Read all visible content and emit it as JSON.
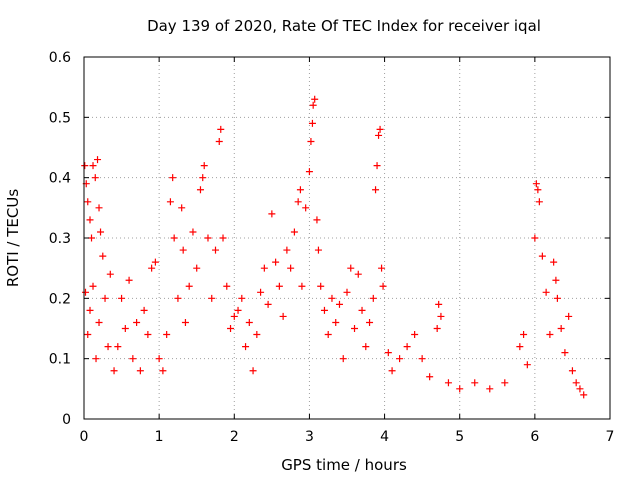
{
  "chart_data": {
    "type": "scatter",
    "title": "Day 139 of 2020, Rate Of TEC Index for receiver iqal",
    "xlabel": "GPS time / hours",
    "ylabel": "ROTI / TECUs",
    "xlim": [
      0,
      7
    ],
    "ylim": [
      0,
      0.6
    ],
    "xticks": [
      "0",
      "1",
      "2",
      "3",
      "4",
      "5",
      "6",
      "7"
    ],
    "yticks": [
      "0",
      "0.1",
      "0.2",
      "0.3",
      "0.4",
      "0.5",
      "0.6"
    ],
    "grid": true,
    "marker": "+",
    "color": "#ff0000",
    "series": [
      {
        "points": [
          [
            0.01,
            0.42
          ],
          [
            0.03,
            0.39
          ],
          [
            0.05,
            0.36
          ],
          [
            0.08,
            0.33
          ],
          [
            0.1,
            0.3
          ],
          [
            0.12,
            0.42
          ],
          [
            0.15,
            0.4
          ],
          [
            0.18,
            0.43
          ],
          [
            0.2,
            0.35
          ],
          [
            0.22,
            0.31
          ],
          [
            0.02,
            0.21
          ],
          [
            0.05,
            0.14
          ],
          [
            0.08,
            0.18
          ],
          [
            0.12,
            0.22
          ],
          [
            0.16,
            0.1
          ],
          [
            0.2,
            0.16
          ],
          [
            0.25,
            0.27
          ],
          [
            0.28,
            0.2
          ],
          [
            0.32,
            0.12
          ],
          [
            0.35,
            0.24
          ],
          [
            0.4,
            0.08
          ],
          [
            0.45,
            0.12
          ],
          [
            0.5,
            0.2
          ],
          [
            0.55,
            0.15
          ],
          [
            0.6,
            0.23
          ],
          [
            0.65,
            0.1
          ],
          [
            0.7,
            0.16
          ],
          [
            0.75,
            0.08
          ],
          [
            0.8,
            0.18
          ],
          [
            0.85,
            0.14
          ],
          [
            0.9,
            0.25
          ],
          [
            0.95,
            0.26
          ],
          [
            1.0,
            0.1
          ],
          [
            1.05,
            0.08
          ],
          [
            1.1,
            0.14
          ],
          [
            1.15,
            0.36
          ],
          [
            1.18,
            0.4
          ],
          [
            1.2,
            0.3
          ],
          [
            1.25,
            0.2
          ],
          [
            1.3,
            0.35
          ],
          [
            1.32,
            0.28
          ],
          [
            1.35,
            0.16
          ],
          [
            1.4,
            0.22
          ],
          [
            1.45,
            0.31
          ],
          [
            1.5,
            0.25
          ],
          [
            1.55,
            0.38
          ],
          [
            1.58,
            0.4
          ],
          [
            1.6,
            0.42
          ],
          [
            1.65,
            0.3
          ],
          [
            1.7,
            0.2
          ],
          [
            1.75,
            0.28
          ],
          [
            1.8,
            0.46
          ],
          [
            1.82,
            0.48
          ],
          [
            1.85,
            0.3
          ],
          [
            1.9,
            0.22
          ],
          [
            1.95,
            0.15
          ],
          [
            2.0,
            0.17
          ],
          [
            2.05,
            0.18
          ],
          [
            2.1,
            0.2
          ],
          [
            2.15,
            0.12
          ],
          [
            2.2,
            0.16
          ],
          [
            2.25,
            0.08
          ],
          [
            2.3,
            0.14
          ],
          [
            2.35,
            0.21
          ],
          [
            2.4,
            0.25
          ],
          [
            2.45,
            0.19
          ],
          [
            2.5,
            0.34
          ],
          [
            2.55,
            0.26
          ],
          [
            2.6,
            0.22
          ],
          [
            2.65,
            0.17
          ],
          [
            2.7,
            0.28
          ],
          [
            2.75,
            0.25
          ],
          [
            2.8,
            0.31
          ],
          [
            2.85,
            0.36
          ],
          [
            2.88,
            0.38
          ],
          [
            2.9,
            0.22
          ],
          [
            2.95,
            0.35
          ],
          [
            3.0,
            0.41
          ],
          [
            3.02,
            0.46
          ],
          [
            3.04,
            0.49
          ],
          [
            3.05,
            0.52
          ],
          [
            3.07,
            0.53
          ],
          [
            3.1,
            0.33
          ],
          [
            3.12,
            0.28
          ],
          [
            3.15,
            0.22
          ],
          [
            3.2,
            0.18
          ],
          [
            3.25,
            0.14
          ],
          [
            3.3,
            0.2
          ],
          [
            3.35,
            0.16
          ],
          [
            3.4,
            0.19
          ],
          [
            3.45,
            0.1
          ],
          [
            3.5,
            0.21
          ],
          [
            3.55,
            0.25
          ],
          [
            3.6,
            0.15
          ],
          [
            3.65,
            0.24
          ],
          [
            3.7,
            0.18
          ],
          [
            3.75,
            0.12
          ],
          [
            3.8,
            0.16
          ],
          [
            3.85,
            0.2
          ],
          [
            3.88,
            0.38
          ],
          [
            3.9,
            0.42
          ],
          [
            3.92,
            0.47
          ],
          [
            3.94,
            0.48
          ],
          [
            3.96,
            0.25
          ],
          [
            3.98,
            0.22
          ],
          [
            4.05,
            0.11
          ],
          [
            4.1,
            0.08
          ],
          [
            4.2,
            0.1
          ],
          [
            4.3,
            0.12
          ],
          [
            4.4,
            0.14
          ],
          [
            4.5,
            0.1
          ],
          [
            4.6,
            0.07
          ],
          [
            4.7,
            0.15
          ],
          [
            4.72,
            0.19
          ],
          [
            4.75,
            0.17
          ],
          [
            4.85,
            0.06
          ],
          [
            5.0,
            0.05
          ],
          [
            5.2,
            0.06
          ],
          [
            5.4,
            0.05
          ],
          [
            5.6,
            0.06
          ],
          [
            5.8,
            0.12
          ],
          [
            5.85,
            0.14
          ],
          [
            5.9,
            0.09
          ],
          [
            6.0,
            0.3
          ],
          [
            6.02,
            0.39
          ],
          [
            6.04,
            0.38
          ],
          [
            6.06,
            0.36
          ],
          [
            6.1,
            0.27
          ],
          [
            6.15,
            0.21
          ],
          [
            6.2,
            0.14
          ],
          [
            6.25,
            0.26
          ],
          [
            6.28,
            0.23
          ],
          [
            6.3,
            0.2
          ],
          [
            6.35,
            0.15
          ],
          [
            6.4,
            0.11
          ],
          [
            6.45,
            0.17
          ],
          [
            6.5,
            0.08
          ],
          [
            6.55,
            0.06
          ],
          [
            6.6,
            0.05
          ],
          [
            6.65,
            0.04
          ]
        ]
      }
    ]
  }
}
